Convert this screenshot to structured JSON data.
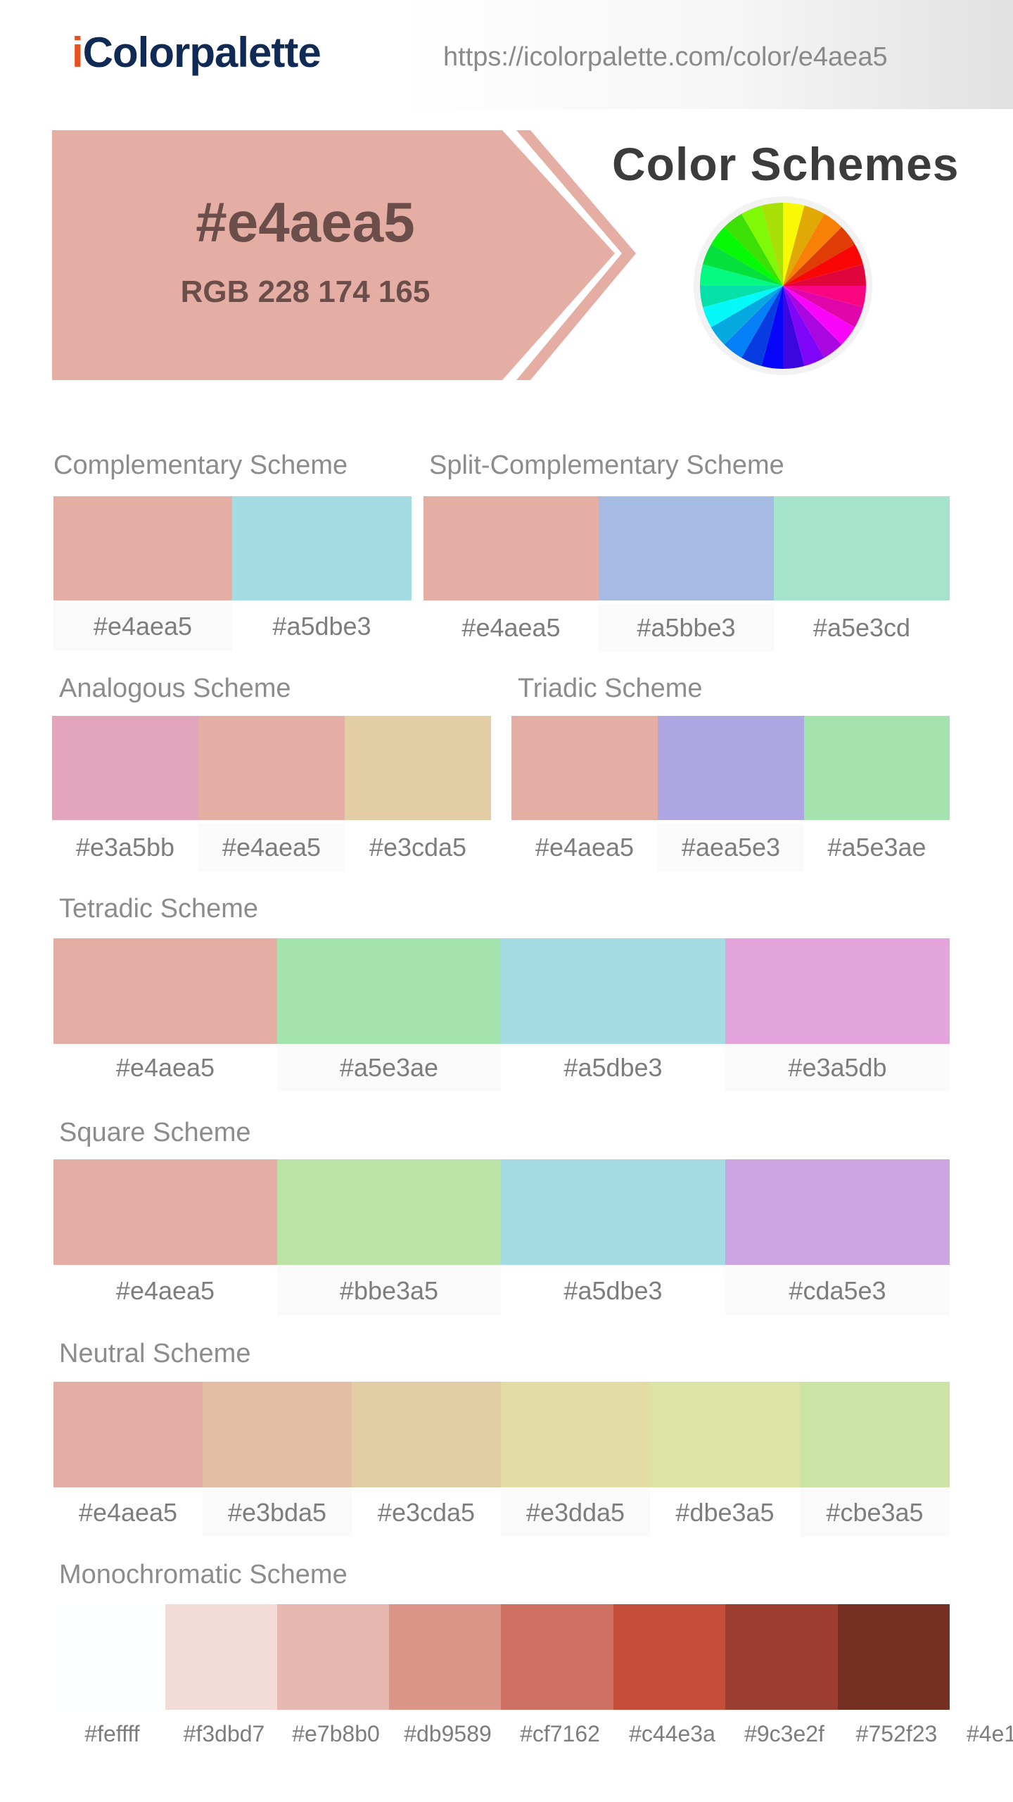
{
  "header": {
    "logo_i": "i",
    "logo_rest": "Colorpalette",
    "url": "https://icolorpalette.com/color/e4aea5"
  },
  "hero": {
    "hex": "#e4aea5",
    "rgb": "RGB 228 174 165",
    "color": "#e4aea5",
    "schemes_title": "Color Schemes",
    "wheel_icon": "color-wheel-icon"
  },
  "complementary": {
    "title": "Complementary Scheme",
    "colors": [
      "#e4aea5",
      "#a5dbe3"
    ]
  },
  "split_complementary": {
    "title": "Split-Complementary Scheme",
    "colors": [
      "#e4aea5",
      "#a5bbe3",
      "#a5e3cd"
    ]
  },
  "analogous": {
    "title": "Analogous Scheme",
    "colors": [
      "#e3a5bb",
      "#e4aea5",
      "#e3cda5"
    ]
  },
  "triadic": {
    "title": "Triadic Scheme",
    "colors": [
      "#e4aea5",
      "#aea5e3",
      "#a5e3ae"
    ]
  },
  "tetradic": {
    "title": "Tetradic Scheme",
    "colors": [
      "#e4aea5",
      "#a5e3ae",
      "#a5dbe3",
      "#e3a5db"
    ]
  },
  "square": {
    "title": "Square Scheme",
    "colors": [
      "#e4aea5",
      "#bbe3a5",
      "#a5dbe3",
      "#cda5e3"
    ]
  },
  "neutral": {
    "title": "Neutral Scheme",
    "colors": [
      "#e4aea5",
      "#e3bda5",
      "#e3cda5",
      "#e3dda5",
      "#dbe3a5",
      "#cbe3a5"
    ]
  },
  "monochromatic": {
    "title": "Monochromatic Scheme",
    "colors": [
      "#feffff",
      "#f3dbd7",
      "#e7b8b0",
      "#db9589",
      "#cf7162",
      "#c44e3a",
      "#9c3e2f",
      "#752f23",
      "#4e1"
    ]
  }
}
